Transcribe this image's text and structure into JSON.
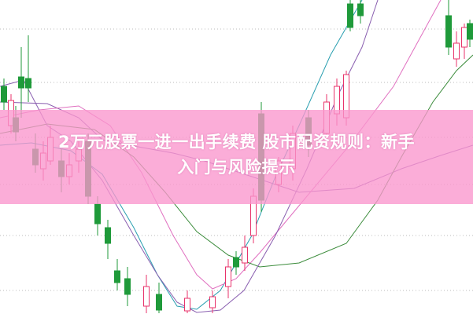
{
  "headline": {
    "line1": "2万元股票一进一出手续费 股市配资规则：新手",
    "line2": "入门与风险提示"
  },
  "colors": {
    "up_candle": "#e8336b",
    "down_candle": "#1f9a3a",
    "band": "#f9a0d2",
    "ma_purple": "#8a5fb0",
    "ma_teal": "#2a9fb0",
    "ma_pink": "#e070c0",
    "ma_green": "#3c8c3c"
  }
}
